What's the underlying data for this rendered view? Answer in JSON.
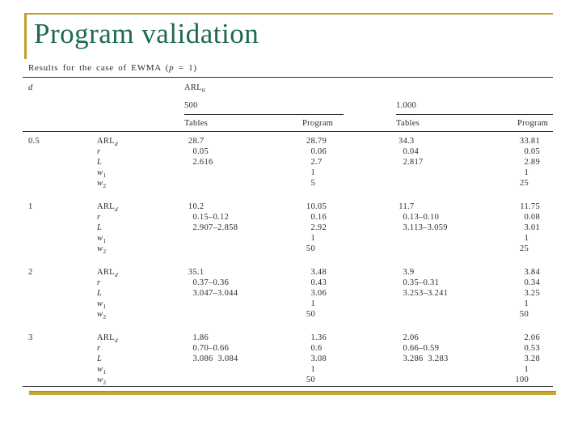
{
  "slide": {
    "title": "Program validation"
  },
  "colors": {
    "title_green": "#1e6b4c",
    "accent_gold": "#bf9e2b",
    "table_ink": "#2b2b2b"
  },
  "table": {
    "caption_pre": "Results for the case of EWMA (",
    "caption_var": "p",
    "caption_post": " = 1)",
    "col_d_header": "d",
    "arl0_header": "ARL_0",
    "group_headers": [
      "500",
      "1.000"
    ],
    "sub_headers": [
      "Tables",
      "Program",
      "Tables",
      "Program"
    ],
    "param_labels": [
      "ARL_d",
      "r",
      "L",
      "w_1",
      "w_2"
    ],
    "blocks": [
      {
        "d": "0.5",
        "rows": [
          [
            "28.7",
            "28.79",
            "34.3",
            "33.81"
          ],
          [
            "0.05",
            "0.06",
            "0.04",
            "0.05"
          ],
          [
            "2.616",
            "2.7",
            "2.817",
            "2.89"
          ],
          [
            "",
            "1",
            "",
            "1"
          ],
          [
            "",
            "5",
            "",
            "25"
          ]
        ]
      },
      {
        "d": "1",
        "rows": [
          [
            "10.2",
            "10.05",
            "11.7",
            "11.75"
          ],
          [
            "0.15–0.12",
            "0.16",
            "0.13–0.10",
            "0.08"
          ],
          [
            "2.907–2.858",
            "2.92",
            "3.113–3.059",
            "3.01"
          ],
          [
            "",
            "1",
            "",
            "1"
          ],
          [
            "",
            "50",
            "",
            "25"
          ]
        ]
      },
      {
        "d": "2",
        "rows": [
          [
            "35.1",
            "3.48",
            "3.9",
            "3.84"
          ],
          [
            "0.37–0.36",
            "0.43",
            "0.35–0.31",
            "0.34"
          ],
          [
            "3.047–3.044",
            "3.06",
            "3.253–3.241",
            "3.25"
          ],
          [
            "",
            "1",
            "",
            "1"
          ],
          [
            "",
            "50",
            "",
            "50"
          ]
        ]
      },
      {
        "d": "3",
        "rows": [
          [
            "1.86",
            "1.36",
            "2.06",
            "2.06"
          ],
          [
            "0.70–0.66",
            "0.6",
            "0.66–0.59",
            "0.53"
          ],
          [
            "3.086  3.084",
            "3.08",
            "3.286  3.283",
            "3.28"
          ],
          [
            "",
            "1",
            "",
            "1"
          ],
          [
            "",
            "50",
            "",
            "100"
          ]
        ]
      }
    ]
  }
}
